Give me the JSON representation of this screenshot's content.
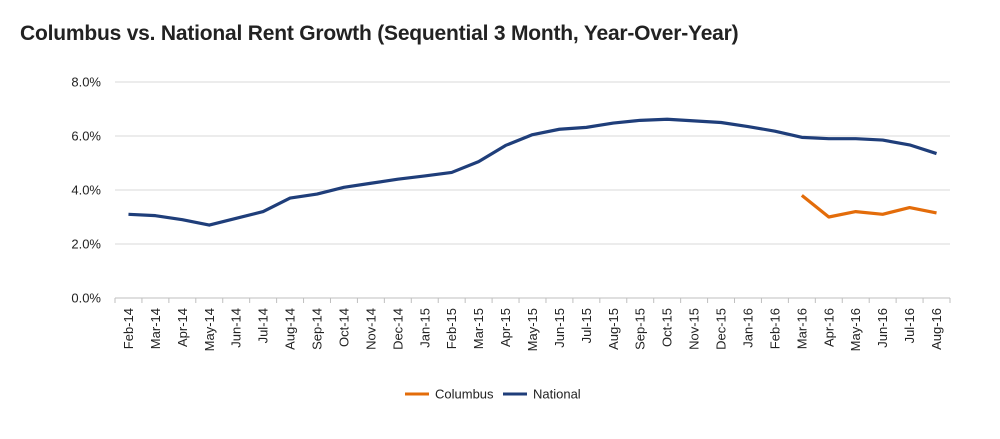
{
  "chart_data": {
    "type": "line",
    "title": "Columbus vs. National Rent Growth (Sequential 3 Month, Year-Over-Year)",
    "xlabel": "",
    "ylabel": "",
    "categories": [
      "Feb-14",
      "Mar-14",
      "Apr-14",
      "May-14",
      "Jun-14",
      "Jul-14",
      "Aug-14",
      "Sep-14",
      "Oct-14",
      "Nov-14",
      "Dec-14",
      "Jan-15",
      "Feb-15",
      "Mar-15",
      "Apr-15",
      "May-15",
      "Jun-15",
      "Jul-15",
      "Aug-15",
      "Sep-15",
      "Oct-15",
      "Nov-15",
      "Dec-15",
      "Jan-16",
      "Feb-16",
      "Mar-16",
      "Apr-16",
      "May-16",
      "Jun-16",
      "Jul-16",
      "Aug-16"
    ],
    "y_ticks": [
      "0.0%",
      "2.0%",
      "4.0%",
      "6.0%",
      "8.0%"
    ],
    "ylim": [
      0,
      8
    ],
    "grid": true,
    "legend_position": "bottom",
    "series": [
      {
        "name": "Columbus",
        "color": "#E36C0A",
        "values": [
          null,
          null,
          null,
          null,
          null,
          null,
          null,
          null,
          null,
          null,
          null,
          null,
          null,
          null,
          null,
          null,
          null,
          null,
          null,
          null,
          null,
          null,
          null,
          null,
          null,
          3.8,
          3.0,
          3.2,
          3.1,
          3.35,
          3.15
        ]
      },
      {
        "name": "National",
        "color": "#1F3E7A",
        "values": [
          3.1,
          3.05,
          2.9,
          2.7,
          2.95,
          3.2,
          3.7,
          3.85,
          4.1,
          4.25,
          4.4,
          4.52,
          4.65,
          5.05,
          5.65,
          6.05,
          6.25,
          6.32,
          6.48,
          6.58,
          6.62,
          6.56,
          6.5,
          6.35,
          6.18,
          5.95,
          5.9,
          5.9,
          5.85,
          5.67,
          5.35
        ]
      }
    ]
  }
}
